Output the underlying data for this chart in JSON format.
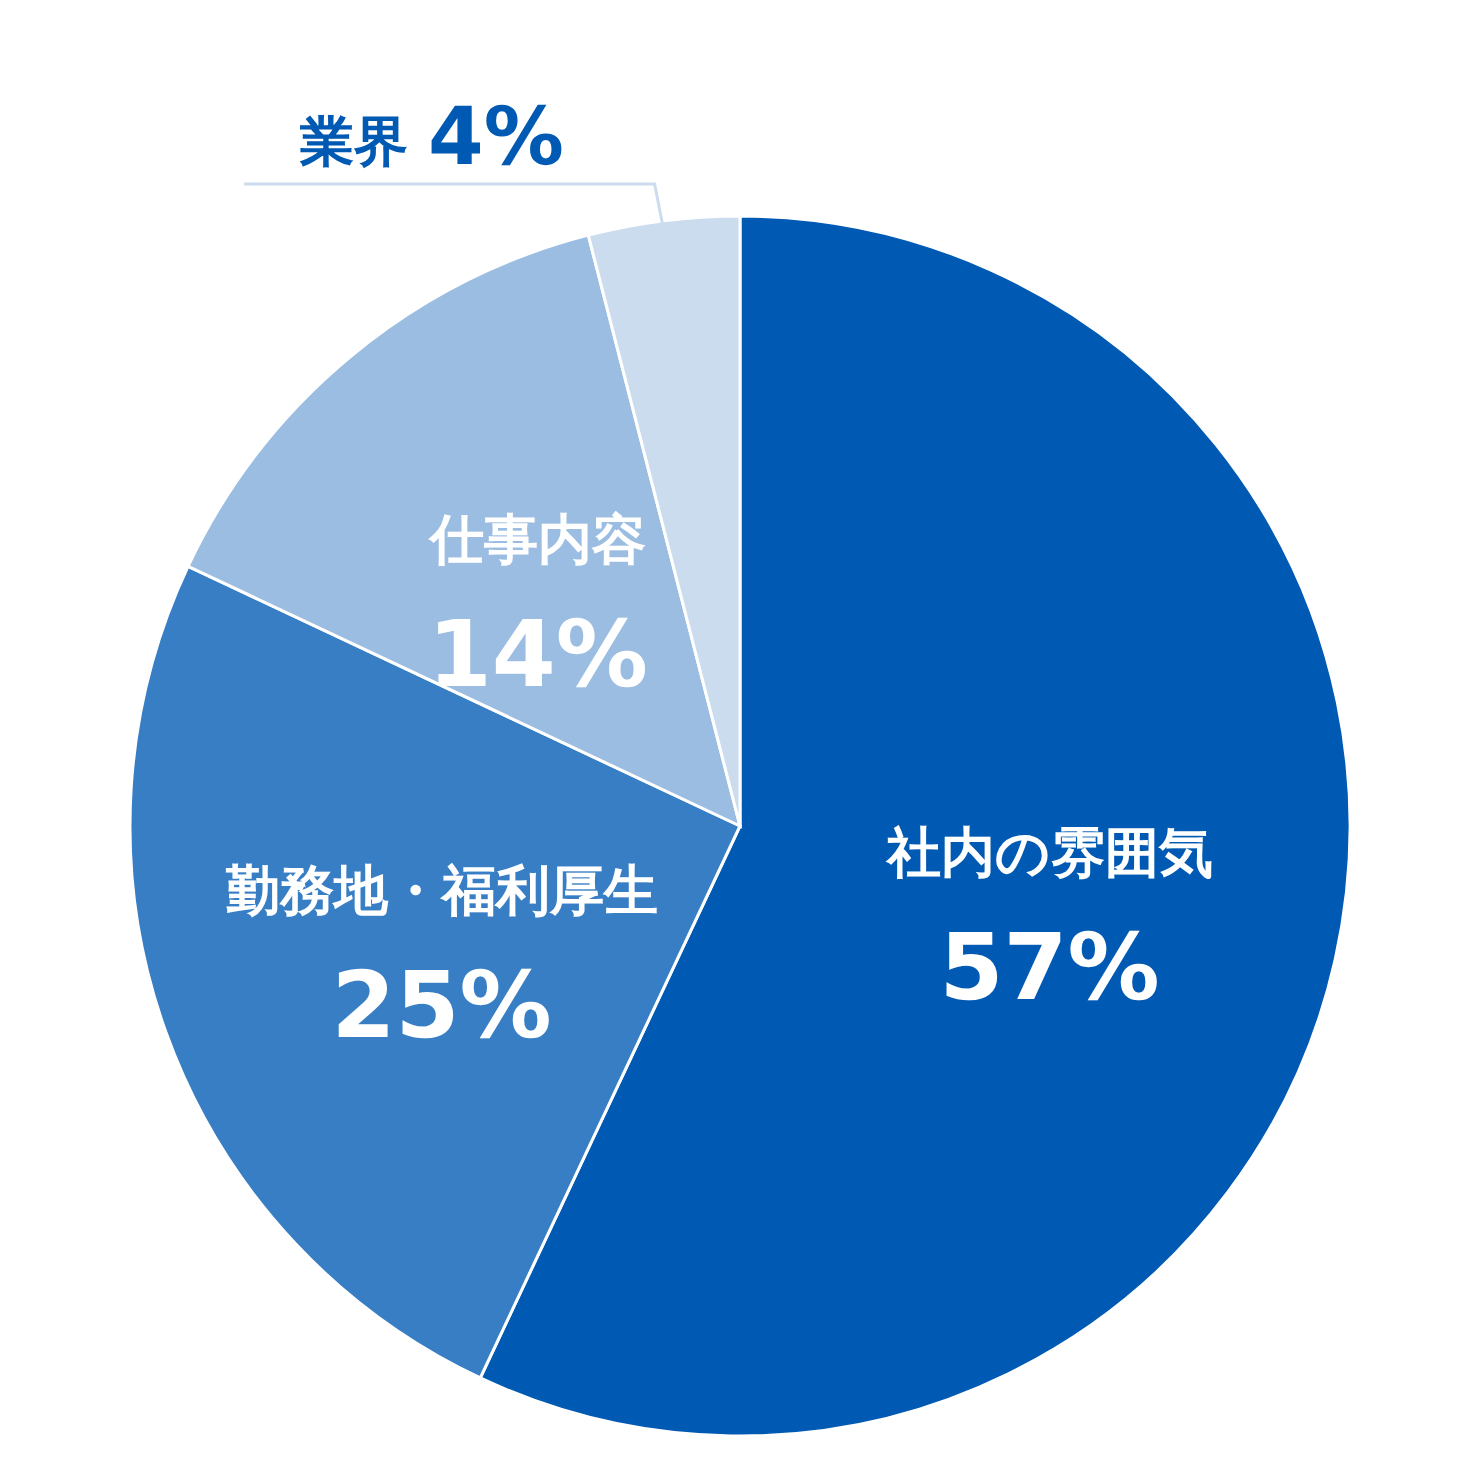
{
  "chart_data": {
    "type": "pie",
    "categories": [
      "社内の雰囲気",
      "勤務地・福利厚生",
      "仕事内容",
      "業界"
    ],
    "values": [
      57,
      25,
      14,
      4
    ],
    "value_labels": [
      "57%",
      "25%",
      "14%",
      "4%"
    ],
    "colors": [
      "#0059b2",
      "#377ec5",
      "#9bbde2",
      "#cbdcef"
    ]
  }
}
